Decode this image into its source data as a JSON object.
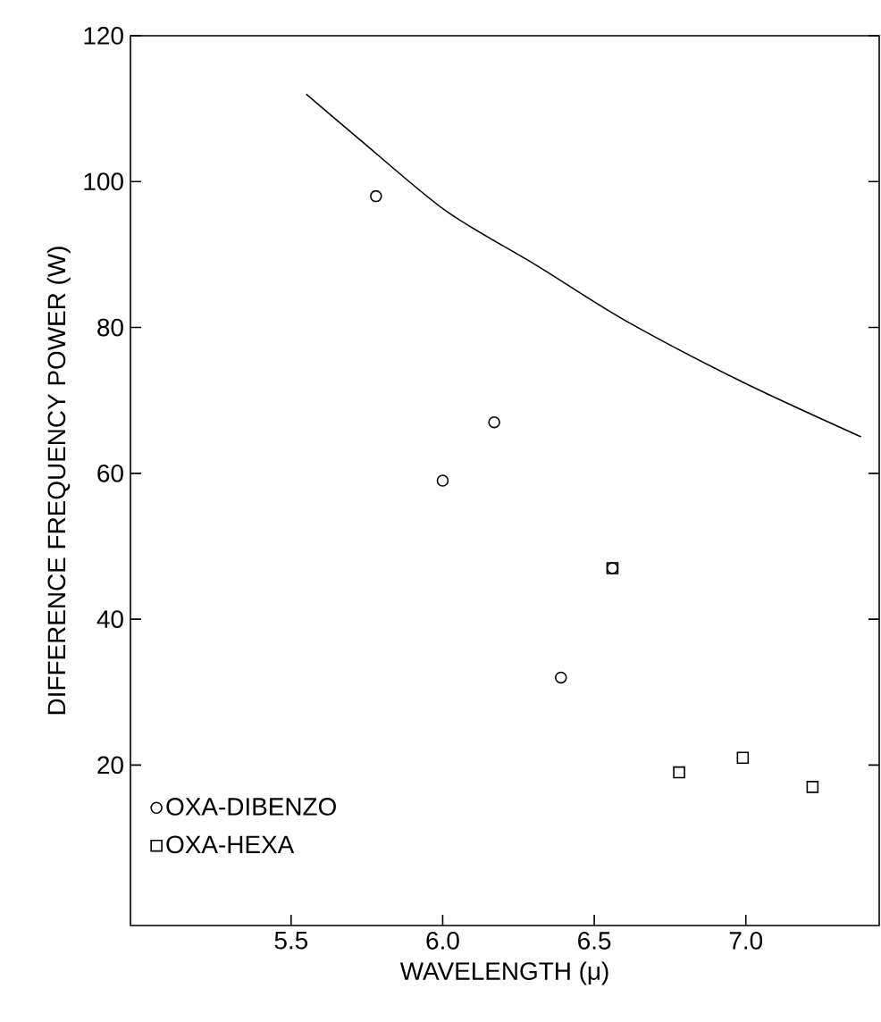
{
  "chart_data": {
    "type": "scatter",
    "xlabel": "WAVELENGTH (μ)",
    "ylabel": "DIFFERENCE FREQUENCY POWER (W)",
    "xlim": [
      4.97,
      7.44
    ],
    "ylim": [
      -2,
      120
    ],
    "xticks": [
      5.5,
      {
        "value": 6,
        "label": "6.0"
      },
      6.5,
      {
        "value": 7,
        "label": "7.0"
      }
    ],
    "yticks": [
      20,
      40,
      60,
      80,
      100,
      120
    ],
    "legend": "bottom left",
    "grid": false,
    "series": [
      {
        "name": "OXA-DIBENZO",
        "color": "#000000",
        "marker": "circle",
        "x": [
          5.78,
          6.0,
          6.17,
          6.39,
          6.56
        ],
        "values": [
          98,
          59,
          67,
          32,
          47
        ]
      },
      {
        "name": "OXA-HEXA",
        "color": "#000000",
        "marker": "square",
        "x": [
          6.56,
          6.78,
          6.99,
          7.22
        ],
        "values": [
          47,
          19,
          21,
          17
        ]
      },
      {
        "type": "line",
        "color": "#000000",
        "marker": "none",
        "line_style": "solid",
        "x": [
          5.55,
          5.72,
          6.01,
          6.31,
          6.6,
          6.99,
          7.38
        ],
        "values": [
          112,
          106,
          96,
          88.5,
          81,
          72.5,
          65
        ]
      }
    ]
  }
}
